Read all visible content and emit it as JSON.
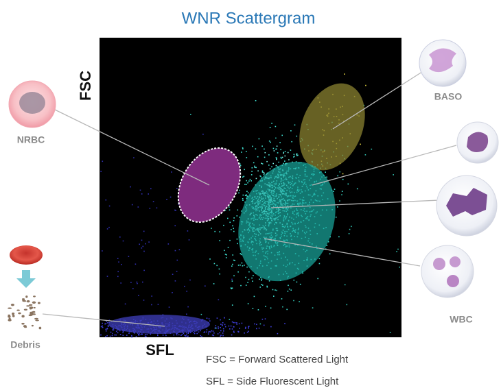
{
  "title": "WNR Scattergram",
  "axes": {
    "y": "FSC",
    "x": "SFL"
  },
  "labels": {
    "nrbc": "NRBC",
    "baso": "BASO",
    "wbc": "WBC",
    "debris": "Debris"
  },
  "legend": [
    "FSC = Forward Scattered Light",
    "SFL = Side Fluorescent Light"
  ]
}
